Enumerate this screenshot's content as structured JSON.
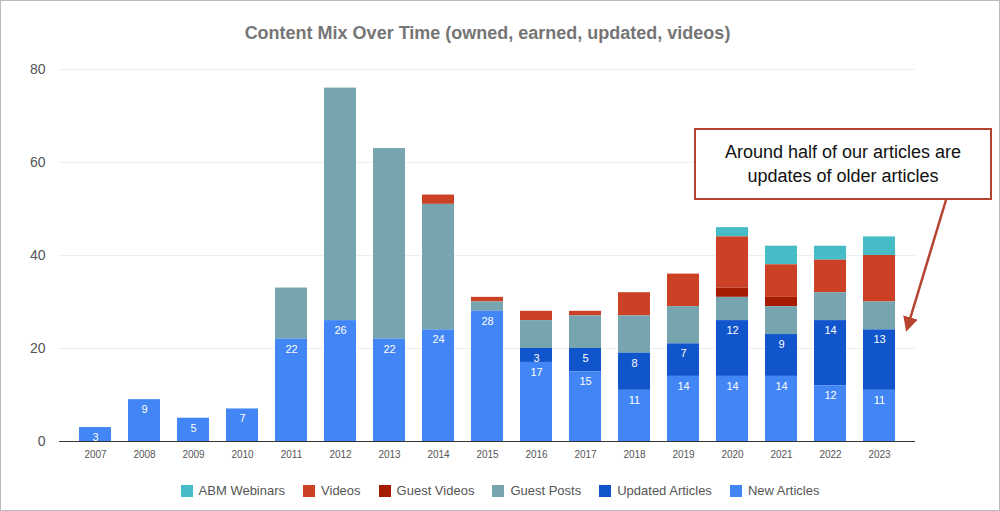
{
  "chart_data": {
    "type": "bar",
    "title": "Content Mix Over Time (owned, earned, updated, videos)",
    "categories": [
      "2007",
      "2008",
      "2009",
      "2010",
      "2011",
      "2012",
      "2013",
      "2014",
      "2015",
      "2016",
      "2017",
      "2018",
      "2019",
      "2020",
      "2021",
      "2022",
      "2023"
    ],
    "series": [
      {
        "name": "ABM Webinars",
        "color": "#46bdc6",
        "values": [
          null,
          null,
          null,
          null,
          null,
          null,
          null,
          null,
          null,
          null,
          null,
          null,
          null,
          2,
          4,
          3,
          4
        ]
      },
      {
        "name": "Videos",
        "color": "#cc4125",
        "values": [
          null,
          null,
          null,
          null,
          null,
          null,
          null,
          2,
          1,
          2,
          1,
          5,
          7,
          11,
          7,
          7,
          10
        ]
      },
      {
        "name": "Guest Videos",
        "color": "#a61c00",
        "values": [
          null,
          null,
          null,
          null,
          null,
          null,
          null,
          null,
          null,
          null,
          null,
          null,
          null,
          2,
          2,
          null,
          null
        ]
      },
      {
        "name": "Guest Posts",
        "color": "#76a5af",
        "values": [
          null,
          null,
          null,
          null,
          11,
          50,
          41,
          27,
          2,
          6,
          7,
          8,
          8,
          5,
          6,
          6,
          6
        ]
      },
      {
        "name": "Updated Articles",
        "color": "#1155cc",
        "data_labels": true,
        "values": [
          null,
          null,
          null,
          null,
          null,
          null,
          null,
          null,
          null,
          3,
          5,
          8,
          7,
          12,
          9,
          14,
          13
        ]
      },
      {
        "name": "New Articles",
        "color": "#4285f4",
        "data_labels": true,
        "values": [
          3,
          9,
          5,
          7,
          22,
          26,
          22,
          24,
          28,
          17,
          15,
          11,
          14,
          14,
          14,
          12,
          11
        ]
      }
    ],
    "stacked": true,
    "ylim": [
      0,
      80
    ],
    "yticks": [
      0,
      20,
      40,
      60,
      80
    ],
    "grid": true,
    "legend": "bottom",
    "annotation": "Around half of our articles are updates of older articles"
  }
}
